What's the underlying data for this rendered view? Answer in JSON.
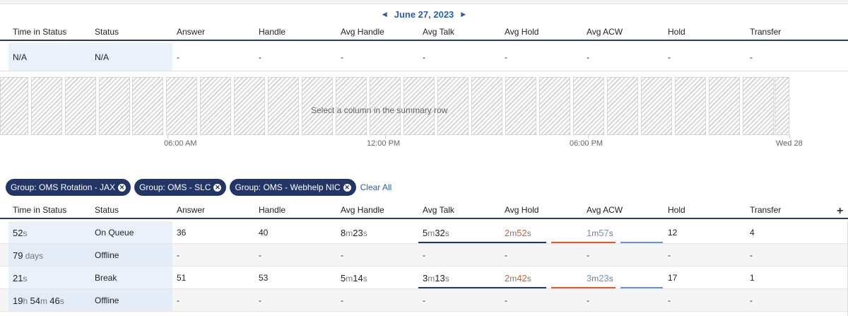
{
  "date_nav": {
    "prev_icon": "chevron-left-icon",
    "date": "June 27, 2023",
    "next_icon": "chevron-right-icon"
  },
  "columns": [
    "Time in Status",
    "Status",
    "Answer",
    "Handle",
    "Avg Handle",
    "Avg Talk",
    "Avg Hold",
    "Avg ACW",
    "Hold",
    "Transfer"
  ],
  "summary": {
    "time_in_status": "N/A",
    "status": "N/A",
    "answer": "-",
    "handle": "-",
    "avg_handle": "-",
    "avg_talk": "-",
    "avg_hold": "-",
    "avg_acw": "-",
    "hold": "-",
    "transfer": "-"
  },
  "timeline": {
    "message": "Select a column in the summary row",
    "axis_labels": [
      "06:00 AM",
      "12:00 PM",
      "06:00 PM",
      "Wed 28"
    ]
  },
  "filters": {
    "chips": [
      {
        "label": "Group: OMS Rotation - JAX"
      },
      {
        "label": "Group: OMS - SLC"
      },
      {
        "label": "Group: OMS - Webhelp NIC"
      }
    ],
    "clear_all": "Clear All"
  },
  "add_column": "+",
  "colors": {
    "navy": "#233466",
    "accent_blue": "#2a5db0",
    "orange": "#e3572d",
    "light_blue": "#6b93d6"
  },
  "rows": [
    {
      "time_in_status": [
        [
          "52",
          "s"
        ]
      ],
      "status": "On Queue",
      "answer": "36",
      "handle": "40",
      "avg_handle": [
        [
          "8",
          "m"
        ],
        [
          "23",
          "s"
        ]
      ],
      "avg_talk": [
        [
          "5",
          "m"
        ],
        [
          "32",
          "s"
        ]
      ],
      "avg_hold": [
        [
          "2",
          "m"
        ],
        [
          "52",
          "s"
        ]
      ],
      "avg_acw": [
        [
          "1",
          "m"
        ],
        [
          "57",
          "s"
        ]
      ],
      "hold": "12",
      "transfer": "4"
    },
    {
      "time_in_status": [
        [
          "79",
          " days"
        ]
      ],
      "status": "Offline",
      "answer": "-",
      "handle": "-",
      "avg_handle": "-",
      "avg_talk": "-",
      "avg_hold": "-",
      "avg_acw": "-",
      "hold": "-",
      "transfer": "-"
    },
    {
      "time_in_status": [
        [
          "21",
          "s"
        ]
      ],
      "status": "Break",
      "answer": "51",
      "handle": "53",
      "avg_handle": [
        [
          "5",
          "m"
        ],
        [
          "14",
          "s"
        ]
      ],
      "avg_talk": [
        [
          "3",
          "m"
        ],
        [
          "13",
          "s"
        ]
      ],
      "avg_hold": [
        [
          "2",
          "m"
        ],
        [
          "42",
          "s"
        ]
      ],
      "avg_acw": [
        [
          "3",
          "m"
        ],
        [
          "23",
          "s"
        ]
      ],
      "hold": "17",
      "transfer": "1"
    },
    {
      "time_in_status": [
        [
          "19",
          "h "
        ],
        [
          "54",
          "m "
        ],
        [
          "46",
          "s"
        ]
      ],
      "status": "Offline",
      "answer": "-",
      "handle": "-",
      "avg_handle": "-",
      "avg_talk": "-",
      "avg_hold": "-",
      "avg_acw": "-",
      "hold": "-",
      "transfer": "-"
    }
  ]
}
